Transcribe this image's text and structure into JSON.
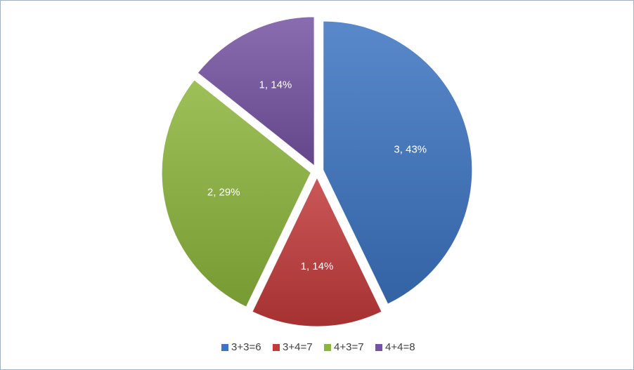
{
  "chart_data": {
    "type": "pie",
    "categories": [
      "3+3=6",
      "3+4=7",
      "4+3=7",
      "4+4=8"
    ],
    "values": [
      3,
      1,
      2,
      1
    ],
    "value_labels": [
      "3, 43%",
      "1, 14%",
      "2, 29%",
      "1, 14%"
    ],
    "colors": [
      "#3b74c2",
      "#c23a3a",
      "#8cb53c",
      "#7553a2"
    ],
    "legend": "bottom"
  }
}
